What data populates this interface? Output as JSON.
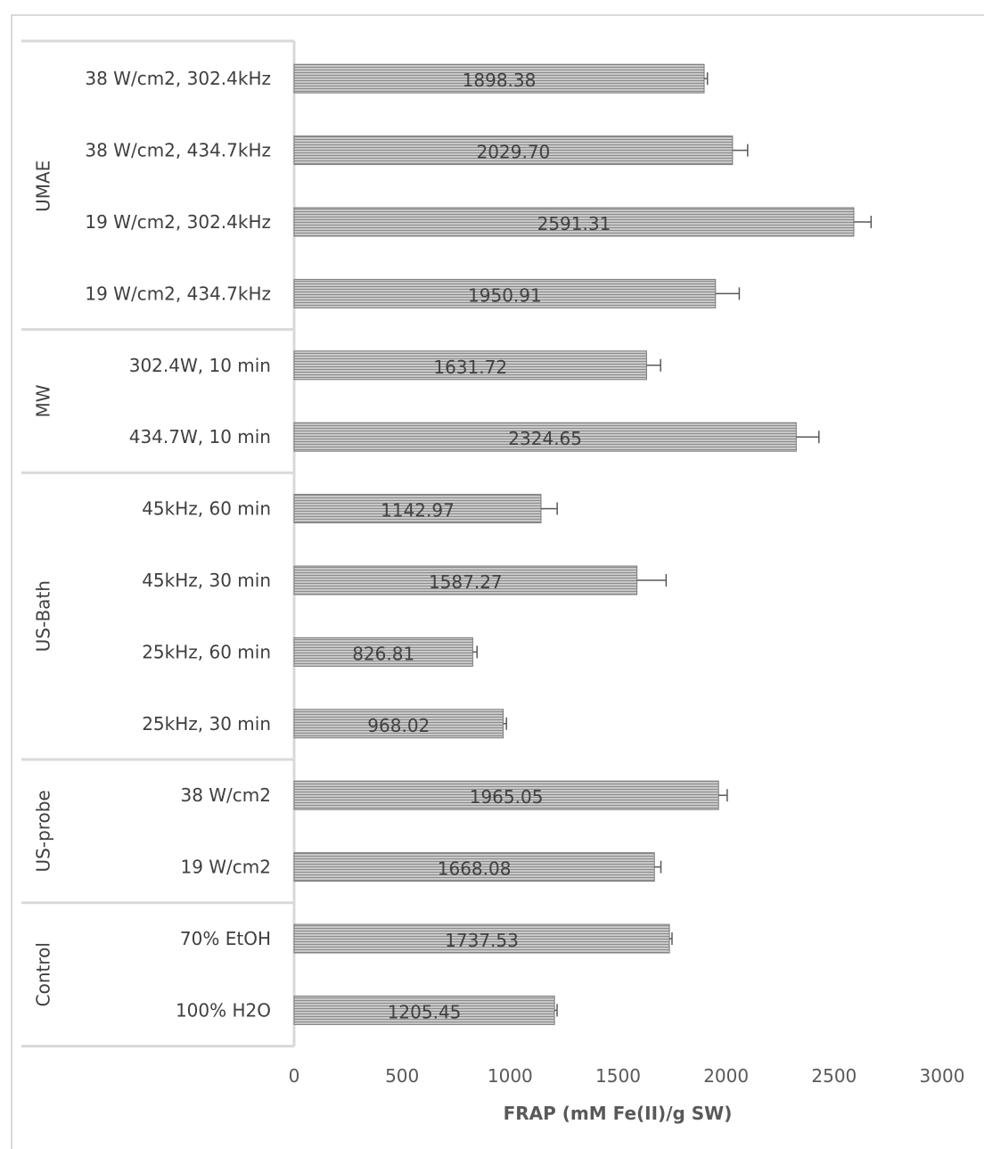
{
  "chart_data": {
    "type": "bar",
    "orientation": "horizontal",
    "xlabel": "FRAP (mM Fe(II)/g SW)",
    "xlim": [
      0,
      3000
    ],
    "xticks": [
      "0",
      "500",
      "1000",
      "1500",
      "2000",
      "2500",
      "3000"
    ],
    "grid": false,
    "groups": [
      {
        "name": "UMAE",
        "bars": [
          {
            "label": "38 W/cm2, 302.4kHz",
            "value": 1898.38,
            "value_label": "1898.38",
            "error": 15
          },
          {
            "label": "38 W/cm2, 434.7kHz",
            "value": 2029.7,
            "value_label": "2029.70",
            "error": 70
          },
          {
            "label": "19 W/cm2, 302.4kHz",
            "value": 2591.31,
            "value_label": "2591.31",
            "error": 80
          },
          {
            "label": "19 W/cm2, 434.7kHz",
            "value": 1950.91,
            "value_label": "1950.91",
            "error": 110
          }
        ]
      },
      {
        "name": "MW",
        "bars": [
          {
            "label": "302.4W, 10 min",
            "value": 1631.72,
            "value_label": "1631.72",
            "error": 65
          },
          {
            "label": "434.7W, 10 min",
            "value": 2324.65,
            "value_label": "2324.65",
            "error": 105
          }
        ]
      },
      {
        "name": "US-Bath",
        "bars": [
          {
            "label": "45kHz, 60 min",
            "value": 1142.97,
            "value_label": "1142.97",
            "error": 75
          },
          {
            "label": "45kHz, 30 min",
            "value": 1587.27,
            "value_label": "1587.27",
            "error": 135
          },
          {
            "label": "25kHz, 60 min",
            "value": 826.81,
            "value_label": "826.81",
            "error": 20
          },
          {
            "label": "25kHz, 30 min",
            "value": 968.02,
            "value_label": "968.02",
            "error": 15
          }
        ]
      },
      {
        "name": "US-probe",
        "bars": [
          {
            "label": "38 W/cm2",
            "value": 1965.05,
            "value_label": "1965.05",
            "error": 40
          },
          {
            "label": "19 W/cm2",
            "value": 1668.08,
            "value_label": "1668.08",
            "error": 30
          }
        ]
      },
      {
        "name": "Control",
        "bars": [
          {
            "label": "70% EtOH",
            "value": 1737.53,
            "value_label": "1737.53",
            "error": 12
          },
          {
            "label": "100% H2O",
            "value": 1205.45,
            "value_label": "1205.45",
            "error": 12
          }
        ]
      }
    ],
    "colors": {
      "bar_fill": "#b4b4b4",
      "bar_stripe": "#8c8c8c",
      "bar_edge": "#7a7a7a",
      "error_bar": "#595959",
      "axis": "#d9d9d9"
    }
  }
}
